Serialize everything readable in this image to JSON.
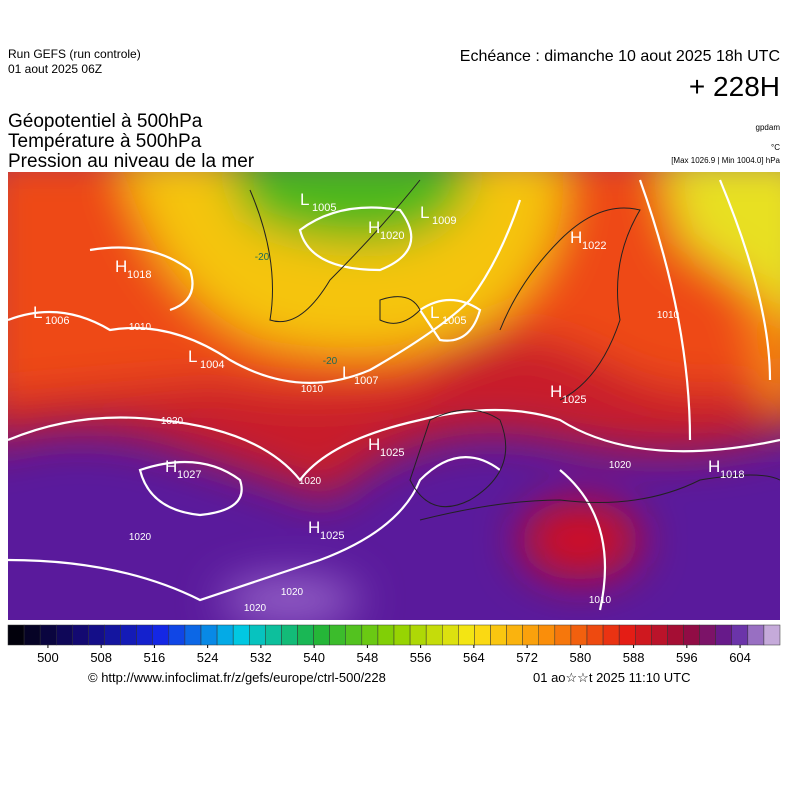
{
  "header": {
    "run": "Run GEFS (run controle)",
    "run_date": "01 aout 2025 06Z",
    "echeance": "Echéance : dimanche 10 aout 2025 18h UTC",
    "lead": "+ 228H"
  },
  "titles": [
    "Géopotentiel à 500hPa",
    "Température à 500hPa",
    "Pression au niveau de la mer"
  ],
  "units": [
    "gpdam",
    "°C",
    "[Max 1026.9 | Min 1004.0] hPa"
  ],
  "centers": [
    {
      "kind": "L",
      "value": 1005
    },
    {
      "kind": "H",
      "value": 1020
    },
    {
      "kind": "L",
      "value": 1009
    },
    {
      "kind": "H",
      "value": 1022
    },
    {
      "kind": "H",
      "value": 1018
    },
    {
      "kind": "L",
      "value": 1006
    },
    {
      "kind": "L",
      "value": 1005
    },
    {
      "kind": "L",
      "value": 1004
    },
    {
      "kind": "L",
      "value": 1007
    },
    {
      "kind": "H",
      "value": 1025
    },
    {
      "kind": "H",
      "value": 1025
    },
    {
      "kind": "H",
      "value": 1027
    },
    {
      "kind": "H",
      "value": 1018
    },
    {
      "kind": "H",
      "value": 1025
    }
  ],
  "isobar_labels": [
    1010,
    1010,
    1010,
    1010,
    1020,
    1020,
    1020,
    1020,
    1020,
    1020,
    -20,
    -20
  ],
  "colorbar": {
    "lim": [
      494,
      610
    ],
    "ticks": [
      500,
      508,
      516,
      524,
      532,
      540,
      548,
      556,
      564,
      572,
      580,
      588,
      596,
      604
    ]
  },
  "footer": {
    "url": "© http://www.infoclimat.fr/z/gefs/europe/ctrl-500/228",
    "date": "01 ao☆☆t 2025 11:10 UTC"
  }
}
